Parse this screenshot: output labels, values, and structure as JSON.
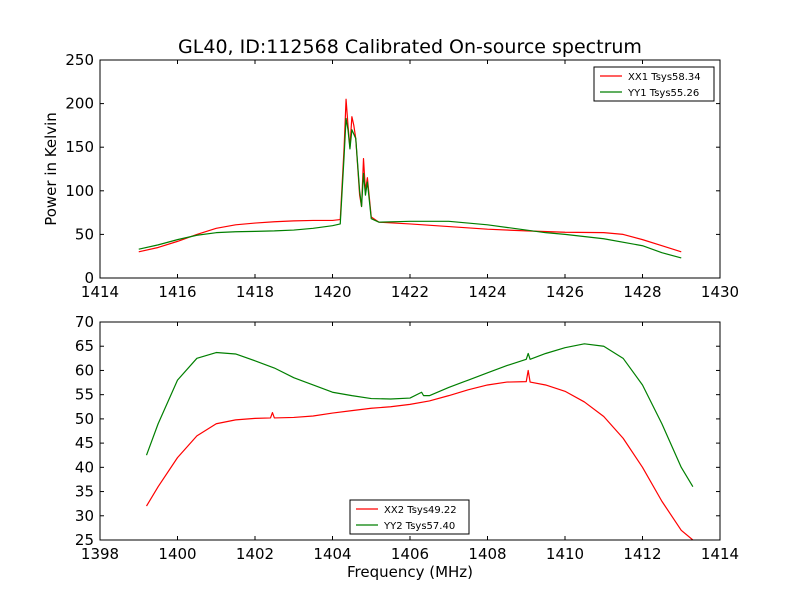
{
  "title": "GL40, ID:112568 Calibrated On-source spectrum",
  "colors": {
    "red": "#ff0000",
    "green": "#007f00"
  },
  "chart_data": [
    {
      "type": "line",
      "ylabel": "Power in Kelvin",
      "xlabel": "",
      "xlim": [
        1414,
        1430
      ],
      "ylim": [
        0,
        250
      ],
      "xticks": [
        "1414",
        "1416",
        "1418",
        "1420",
        "1422",
        "1424",
        "1426",
        "1428",
        "1430"
      ],
      "yticks": [
        "0",
        "50",
        "100",
        "150",
        "200",
        "250"
      ],
      "legend_position": "top-right",
      "series": [
        {
          "name": "XX1 Tsys58.34",
          "color": "#ff0000",
          "points": [
            [
              1415.0,
              30
            ],
            [
              1415.5,
              35
            ],
            [
              1416.0,
              42
            ],
            [
              1416.5,
              50
            ],
            [
              1417.0,
              57
            ],
            [
              1417.5,
              61
            ],
            [
              1418.0,
              63
            ],
            [
              1418.5,
              64.5
            ],
            [
              1419.0,
              65.5
            ],
            [
              1419.5,
              66
            ],
            [
              1420.0,
              66
            ],
            [
              1420.2,
              67
            ],
            [
              1420.3,
              150
            ],
            [
              1420.35,
              205
            ],
            [
              1420.4,
              175
            ],
            [
              1420.45,
              150
            ],
            [
              1420.5,
              185
            ],
            [
              1420.55,
              175
            ],
            [
              1420.6,
              160
            ],
            [
              1420.7,
              95
            ],
            [
              1420.75,
              82
            ],
            [
              1420.8,
              137
            ],
            [
              1420.85,
              100
            ],
            [
              1420.9,
              115
            ],
            [
              1421.0,
              70
            ],
            [
              1421.2,
              64
            ],
            [
              1422.0,
              62
            ],
            [
              1423.0,
              59
            ],
            [
              1424.0,
              56
            ],
            [
              1425.0,
              54
            ],
            [
              1426.0,
              52.5
            ],
            [
              1427.0,
              52
            ],
            [
              1427.5,
              50
            ],
            [
              1428.0,
              44
            ],
            [
              1428.5,
              37
            ],
            [
              1429.0,
              30
            ]
          ]
        },
        {
          "name": "YY1 Tsys55.26",
          "color": "#007f00",
          "points": [
            [
              1415.0,
              33
            ],
            [
              1415.5,
              38
            ],
            [
              1416.0,
              44
            ],
            [
              1416.5,
              49
            ],
            [
              1417.0,
              52
            ],
            [
              1417.5,
              53
            ],
            [
              1418.0,
              53.5
            ],
            [
              1418.5,
              54
            ],
            [
              1419.0,
              55
            ],
            [
              1419.5,
              57
            ],
            [
              1420.0,
              60
            ],
            [
              1420.2,
              62
            ],
            [
              1420.3,
              140
            ],
            [
              1420.35,
              183
            ],
            [
              1420.4,
              170
            ],
            [
              1420.45,
              148
            ],
            [
              1420.5,
              170
            ],
            [
              1420.55,
              165
            ],
            [
              1420.6,
              160
            ],
            [
              1420.7,
              100
            ],
            [
              1420.75,
              82
            ],
            [
              1420.8,
              120
            ],
            [
              1420.85,
              95
            ],
            [
              1420.9,
              110
            ],
            [
              1421.0,
              68
            ],
            [
              1421.2,
              64
            ],
            [
              1422.0,
              65
            ],
            [
              1423.0,
              65
            ],
            [
              1424.0,
              61
            ],
            [
              1425.0,
              55
            ],
            [
              1425.5,
              52
            ],
            [
              1426.0,
              50
            ],
            [
              1427.0,
              45
            ],
            [
              1428.0,
              37
            ],
            [
              1428.5,
              29
            ],
            [
              1429.0,
              23
            ]
          ]
        }
      ]
    },
    {
      "type": "line",
      "ylabel": "",
      "xlabel": "Frequency (MHz)",
      "xlim": [
        1398,
        1414
      ],
      "ylim": [
        25,
        70
      ],
      "xticks": [
        "1398",
        "1400",
        "1402",
        "1404",
        "1406",
        "1408",
        "1410",
        "1412",
        "1414"
      ],
      "yticks": [
        "25",
        "30",
        "35",
        "40",
        "45",
        "50",
        "55",
        "60",
        "65",
        "70"
      ],
      "legend_position": "bottom-center",
      "series": [
        {
          "name": "XX2 Tsys49.22",
          "color": "#ff0000",
          "points": [
            [
              1399.2,
              32
            ],
            [
              1399.5,
              36
            ],
            [
              1400.0,
              42
            ],
            [
              1400.5,
              46.5
            ],
            [
              1401.0,
              49
            ],
            [
              1401.5,
              49.8
            ],
            [
              1402.0,
              50.1
            ],
            [
              1402.4,
              50.2
            ],
            [
              1402.45,
              51.3
            ],
            [
              1402.5,
              50.2
            ],
            [
              1403.0,
              50.3
            ],
            [
              1403.5,
              50.6
            ],
            [
              1404.0,
              51.2
            ],
            [
              1404.5,
              51.7
            ],
            [
              1405.0,
              52.2
            ],
            [
              1405.5,
              52.5
            ],
            [
              1406.0,
              53
            ],
            [
              1406.5,
              53.7
            ],
            [
              1407.0,
              54.8
            ],
            [
              1407.5,
              56
            ],
            [
              1408.0,
              57
            ],
            [
              1408.5,
              57.6
            ],
            [
              1409.0,
              57.7
            ],
            [
              1409.05,
              60
            ],
            [
              1409.1,
              57.6
            ],
            [
              1409.5,
              57
            ],
            [
              1410.0,
              55.7
            ],
            [
              1410.5,
              53.5
            ],
            [
              1411.0,
              50.5
            ],
            [
              1411.5,
              46
            ],
            [
              1412.0,
              40
            ],
            [
              1412.5,
              33
            ],
            [
              1413.0,
              27
            ],
            [
              1413.3,
              25
            ]
          ]
        },
        {
          "name": "YY2 Tsys57.40",
          "color": "#007f00",
          "points": [
            [
              1399.2,
              42.5
            ],
            [
              1399.5,
              49
            ],
            [
              1400.0,
              58
            ],
            [
              1400.5,
              62.5
            ],
            [
              1401.0,
              63.7
            ],
            [
              1401.5,
              63.4
            ],
            [
              1402.0,
              62
            ],
            [
              1402.5,
              60.5
            ],
            [
              1403.0,
              58.5
            ],
            [
              1403.5,
              57
            ],
            [
              1404.0,
              55.5
            ],
            [
              1404.5,
              54.8
            ],
            [
              1405.0,
              54.2
            ],
            [
              1405.5,
              54.1
            ],
            [
              1406.0,
              54.3
            ],
            [
              1406.3,
              55.5
            ],
            [
              1406.35,
              54.8
            ],
            [
              1406.5,
              54.8
            ],
            [
              1407.0,
              56.5
            ],
            [
              1407.5,
              58
            ],
            [
              1408.0,
              59.5
            ],
            [
              1408.5,
              61
            ],
            [
              1409.0,
              62.3
            ],
            [
              1409.05,
              63.5
            ],
            [
              1409.1,
              62.3
            ],
            [
              1409.5,
              63.5
            ],
            [
              1410.0,
              64.7
            ],
            [
              1410.5,
              65.5
            ],
            [
              1411.0,
              65
            ],
            [
              1411.5,
              62.5
            ],
            [
              1412.0,
              57
            ],
            [
              1412.5,
              49
            ],
            [
              1413.0,
              40
            ],
            [
              1413.3,
              36
            ]
          ]
        }
      ]
    }
  ]
}
